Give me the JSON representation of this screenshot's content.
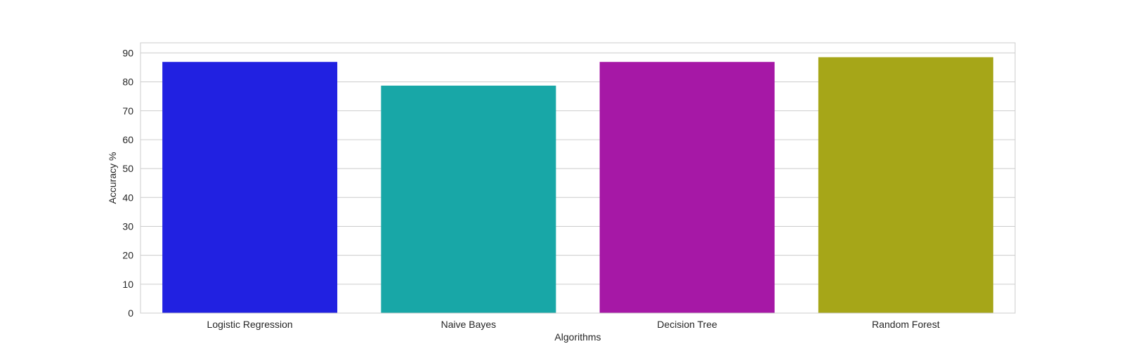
{
  "chart_data": {
    "type": "bar",
    "title": "",
    "xlabel": "Algorithms",
    "ylabel": "Accuracy %",
    "categories": [
      "Logistic Regression",
      "Naive Bayes",
      "Decision Tree",
      "Random Forest"
    ],
    "values": [
      86.89,
      78.69,
      86.89,
      88.52
    ],
    "colors": [
      "#2121e1",
      "#18a7a7",
      "#a618a6",
      "#a6a618"
    ],
    "ylim": [
      0,
      93.5
    ],
    "yticks": [
      0,
      10,
      20,
      30,
      40,
      50,
      60,
      70,
      80,
      90
    ],
    "grid": true,
    "legend": "none"
  }
}
